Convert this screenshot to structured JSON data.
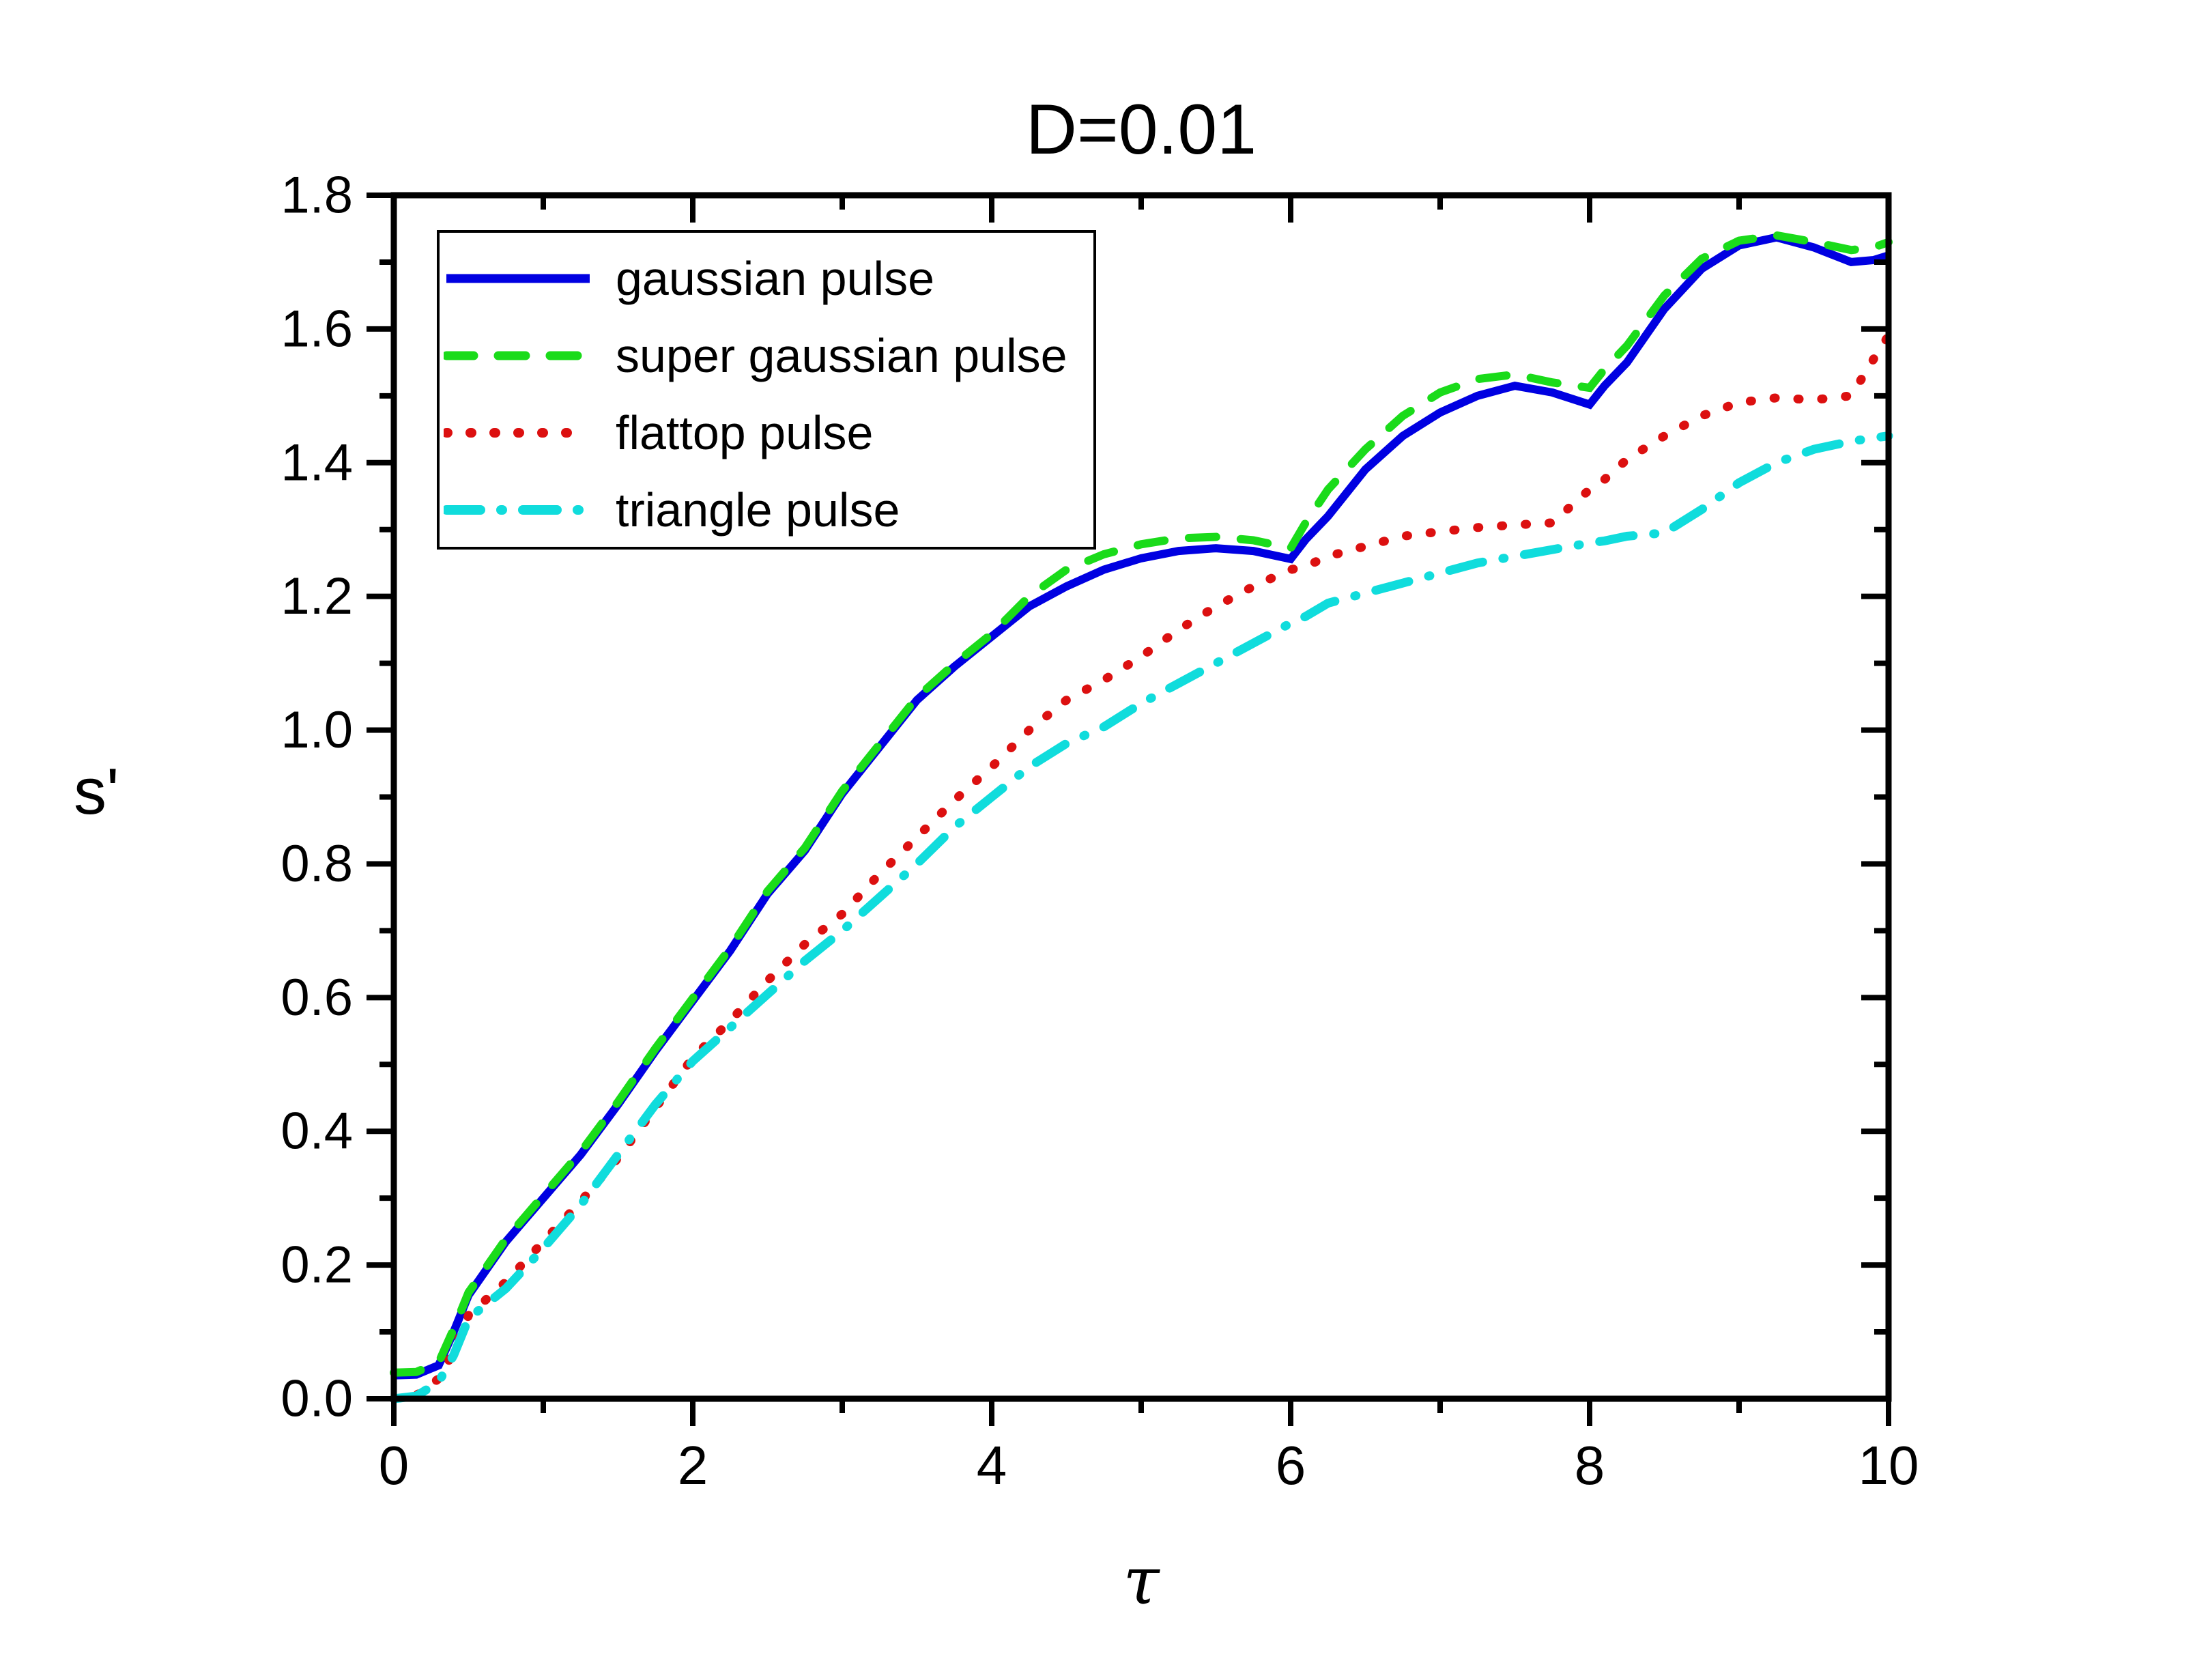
{
  "figure": {
    "title": "D=0.01",
    "background_color": "#ffffff",
    "axis_color": "#000000"
  },
  "chart_data": {
    "type": "line",
    "title": "D=0.01",
    "xlabel": "τ",
    "ylabel": "s'",
    "xlim": [
      0,
      10
    ],
    "ylim": [
      0,
      1.8
    ],
    "grid": false,
    "legend_position": "upper-left-inside",
    "x_major_ticks": [
      0,
      2,
      4,
      6,
      8,
      10
    ],
    "x_minor_ticks": [
      1,
      3,
      5,
      7,
      9
    ],
    "x_tick_labels": [
      "0",
      "2",
      "4",
      "6",
      "8",
      "10"
    ],
    "y_major_ticks": [
      0.0,
      0.2,
      0.4,
      0.6,
      0.8,
      1.0,
      1.2,
      1.4,
      1.6,
      1.8
    ],
    "y_minor_ticks": [
      0.1,
      0.3,
      0.5,
      0.7,
      0.9,
      1.1,
      1.3,
      1.5,
      1.7
    ],
    "y_tick_labels": [
      "0.0",
      "0.2",
      "0.4",
      "0.6",
      "0.8",
      "1.0",
      "1.2",
      "1.4",
      "1.6",
      "1.8"
    ],
    "x": [
      0,
      0.15,
      0.3,
      0.4,
      0.5,
      0.75,
      1.0,
      1.25,
      1.5,
      1.75,
      2.0,
      2.25,
      2.5,
      2.75,
      3.0,
      3.25,
      3.5,
      3.75,
      4.0,
      4.25,
      4.5,
      4.75,
      5.0,
      5.25,
      5.5,
      5.75,
      6.0,
      6.1,
      6.25,
      6.5,
      6.75,
      7.0,
      7.25,
      7.5,
      7.75,
      8.0,
      8.1,
      8.25,
      8.5,
      8.75,
      9.0,
      9.25,
      9.5,
      9.75,
      9.9,
      10.0
    ],
    "series": [
      {
        "name": "gaussian pulse",
        "color": "#0000E1",
        "style": "solid",
        "width": 12,
        "values": [
          0.035,
          0.036,
          0.05,
          0.1,
          0.155,
          0.235,
          0.3,
          0.365,
          0.44,
          0.52,
          0.595,
          0.67,
          0.755,
          0.82,
          0.905,
          0.975,
          1.045,
          1.095,
          1.14,
          1.185,
          1.215,
          1.24,
          1.257,
          1.268,
          1.272,
          1.268,
          1.256,
          1.285,
          1.32,
          1.39,
          1.44,
          1.475,
          1.5,
          1.515,
          1.505,
          1.487,
          1.515,
          1.55,
          1.63,
          1.69,
          1.725,
          1.737,
          1.722,
          1.7,
          1.703,
          1.71
        ]
      },
      {
        "name": "super gaussian pulse",
        "color": "#1ADB1A",
        "style": "dashed",
        "width": 12,
        "values": [
          0.039,
          0.04,
          0.054,
          0.104,
          0.159,
          0.239,
          0.304,
          0.369,
          0.444,
          0.524,
          0.599,
          0.674,
          0.759,
          0.824,
          0.909,
          0.979,
          1.049,
          1.099,
          1.144,
          1.2,
          1.24,
          1.263,
          1.278,
          1.287,
          1.289,
          1.284,
          1.272,
          1.31,
          1.36,
          1.42,
          1.47,
          1.505,
          1.525,
          1.532,
          1.52,
          1.512,
          1.54,
          1.575,
          1.65,
          1.705,
          1.732,
          1.74,
          1.73,
          1.718,
          1.722,
          1.73
        ]
      },
      {
        "name": "flattop pulse",
        "color": "#DC1010",
        "style": "dotted",
        "width": 13,
        "values": [
          0.0,
          0.005,
          0.03,
          0.07,
          0.125,
          0.175,
          0.235,
          0.295,
          0.36,
          0.435,
          0.51,
          0.565,
          0.625,
          0.68,
          0.725,
          0.785,
          0.84,
          0.895,
          0.945,
          1.0,
          1.045,
          1.075,
          1.11,
          1.15,
          1.185,
          1.215,
          1.24,
          1.245,
          1.26,
          1.275,
          1.29,
          1.297,
          1.303,
          1.307,
          1.31,
          1.36,
          1.375,
          1.405,
          1.44,
          1.47,
          1.49,
          1.497,
          1.494,
          1.5,
          1.555,
          1.59
        ]
      },
      {
        "name": "triangle pulse",
        "color": "#10DCDC",
        "style": "dash-dot",
        "width": 13,
        "values": [
          0.0,
          0.004,
          0.025,
          0.065,
          0.12,
          0.165,
          0.225,
          0.29,
          0.365,
          0.44,
          0.505,
          0.555,
          0.605,
          0.655,
          0.7,
          0.75,
          0.8,
          0.855,
          0.9,
          0.945,
          0.98,
          1.005,
          1.04,
          1.07,
          1.1,
          1.13,
          1.16,
          1.17,
          1.19,
          1.205,
          1.22,
          1.235,
          1.25,
          1.26,
          1.27,
          1.28,
          1.283,
          1.29,
          1.295,
          1.33,
          1.37,
          1.4,
          1.42,
          1.432,
          1.437,
          1.44
        ]
      }
    ]
  }
}
